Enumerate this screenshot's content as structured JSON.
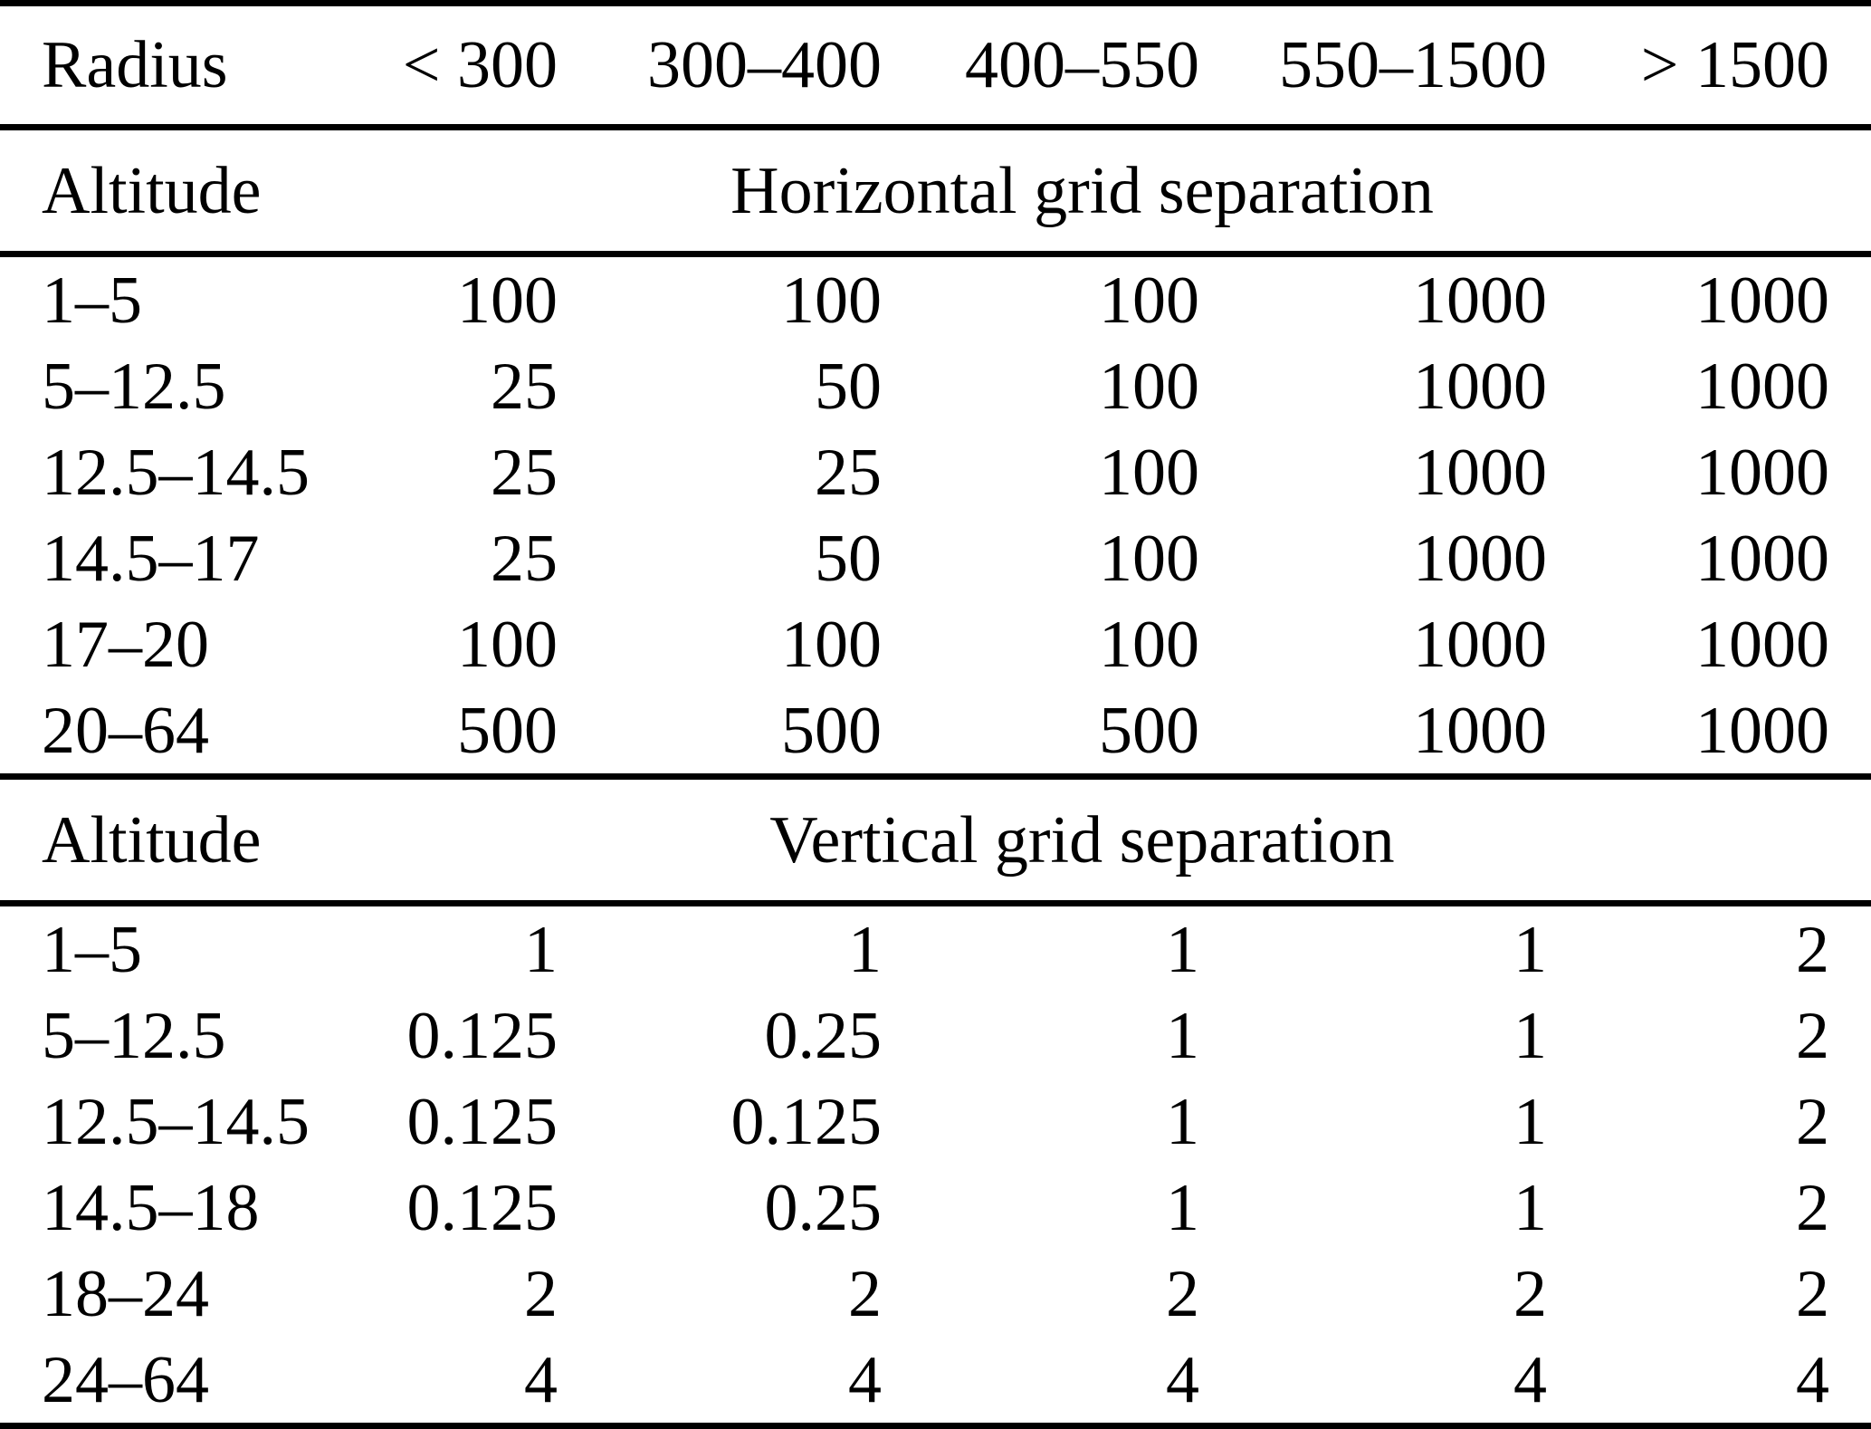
{
  "colors": {
    "text": "#000000",
    "background": "#ffffff",
    "rule": "#000000"
  },
  "table": {
    "header": {
      "radius_label": "Radius",
      "radius_bins": [
        "< 300",
        "300–400",
        "400–550",
        "550–1500",
        "> 1500"
      ]
    },
    "sections": [
      {
        "label": "Altitude",
        "title": "Horizontal grid separation",
        "rows": [
          {
            "altitude": "1–5",
            "values": [
              "100",
              "100",
              "100",
              "1000",
              "1000"
            ]
          },
          {
            "altitude": "5–12.5",
            "values": [
              "25",
              "50",
              "100",
              "1000",
              "1000"
            ]
          },
          {
            "altitude": "12.5–14.5",
            "values": [
              "25",
              "25",
              "100",
              "1000",
              "1000"
            ]
          },
          {
            "altitude": "14.5–17",
            "values": [
              "25",
              "50",
              "100",
              "1000",
              "1000"
            ]
          },
          {
            "altitude": "17–20",
            "values": [
              "100",
              "100",
              "100",
              "1000",
              "1000"
            ]
          },
          {
            "altitude": "20–64",
            "values": [
              "500",
              "500",
              "500",
              "1000",
              "1000"
            ]
          }
        ]
      },
      {
        "label": "Altitude",
        "title": "Vertical grid separation",
        "rows": [
          {
            "altitude": "1–5",
            "values": [
              "1",
              "1",
              "1",
              "1",
              "2"
            ]
          },
          {
            "altitude": "5–12.5",
            "values": [
              "0.125",
              "0.25",
              "1",
              "1",
              "2"
            ]
          },
          {
            "altitude": "12.5–14.5",
            "values": [
              "0.125",
              "0.125",
              "1",
              "1",
              "2"
            ]
          },
          {
            "altitude": "14.5–18",
            "values": [
              "0.125",
              "0.25",
              "1",
              "1",
              "2"
            ]
          },
          {
            "altitude": "18–24",
            "values": [
              "2",
              "2",
              "2",
              "2",
              "2"
            ]
          },
          {
            "altitude": "24–64",
            "values": [
              "4",
              "4",
              "4",
              "4",
              "4"
            ]
          }
        ]
      }
    ]
  }
}
